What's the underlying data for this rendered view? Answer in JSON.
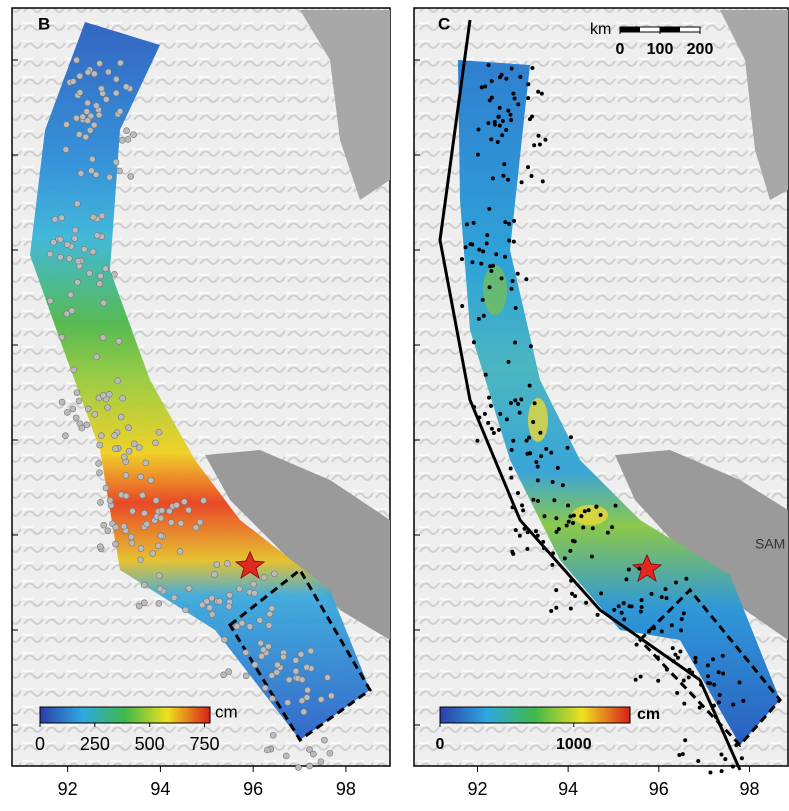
{
  "panels": [
    {
      "label": "B",
      "xlim": [
        90.8,
        98.95
      ],
      "xticks": [
        92,
        94,
        96,
        98
      ],
      "colorbar": {
        "unit": "cm",
        "lim": [
          0,
          775
        ],
        "ticks": [
          0,
          250,
          500,
          750
        ]
      }
    },
    {
      "label": "C",
      "xlim": [
        90.6,
        98.85
      ],
      "xticks": [
        92,
        94,
        96,
        98
      ],
      "colorbar": {
        "unit": "cm",
        "lim": [
          0,
          1420
        ],
        "ticks": [
          0,
          1000
        ]
      },
      "scale_bar": {
        "unit": "km",
        "lim": [
          0,
          200
        ],
        "ticks": [
          0,
          100,
          200
        ]
      },
      "place_label": "SAM"
    }
  ]
}
